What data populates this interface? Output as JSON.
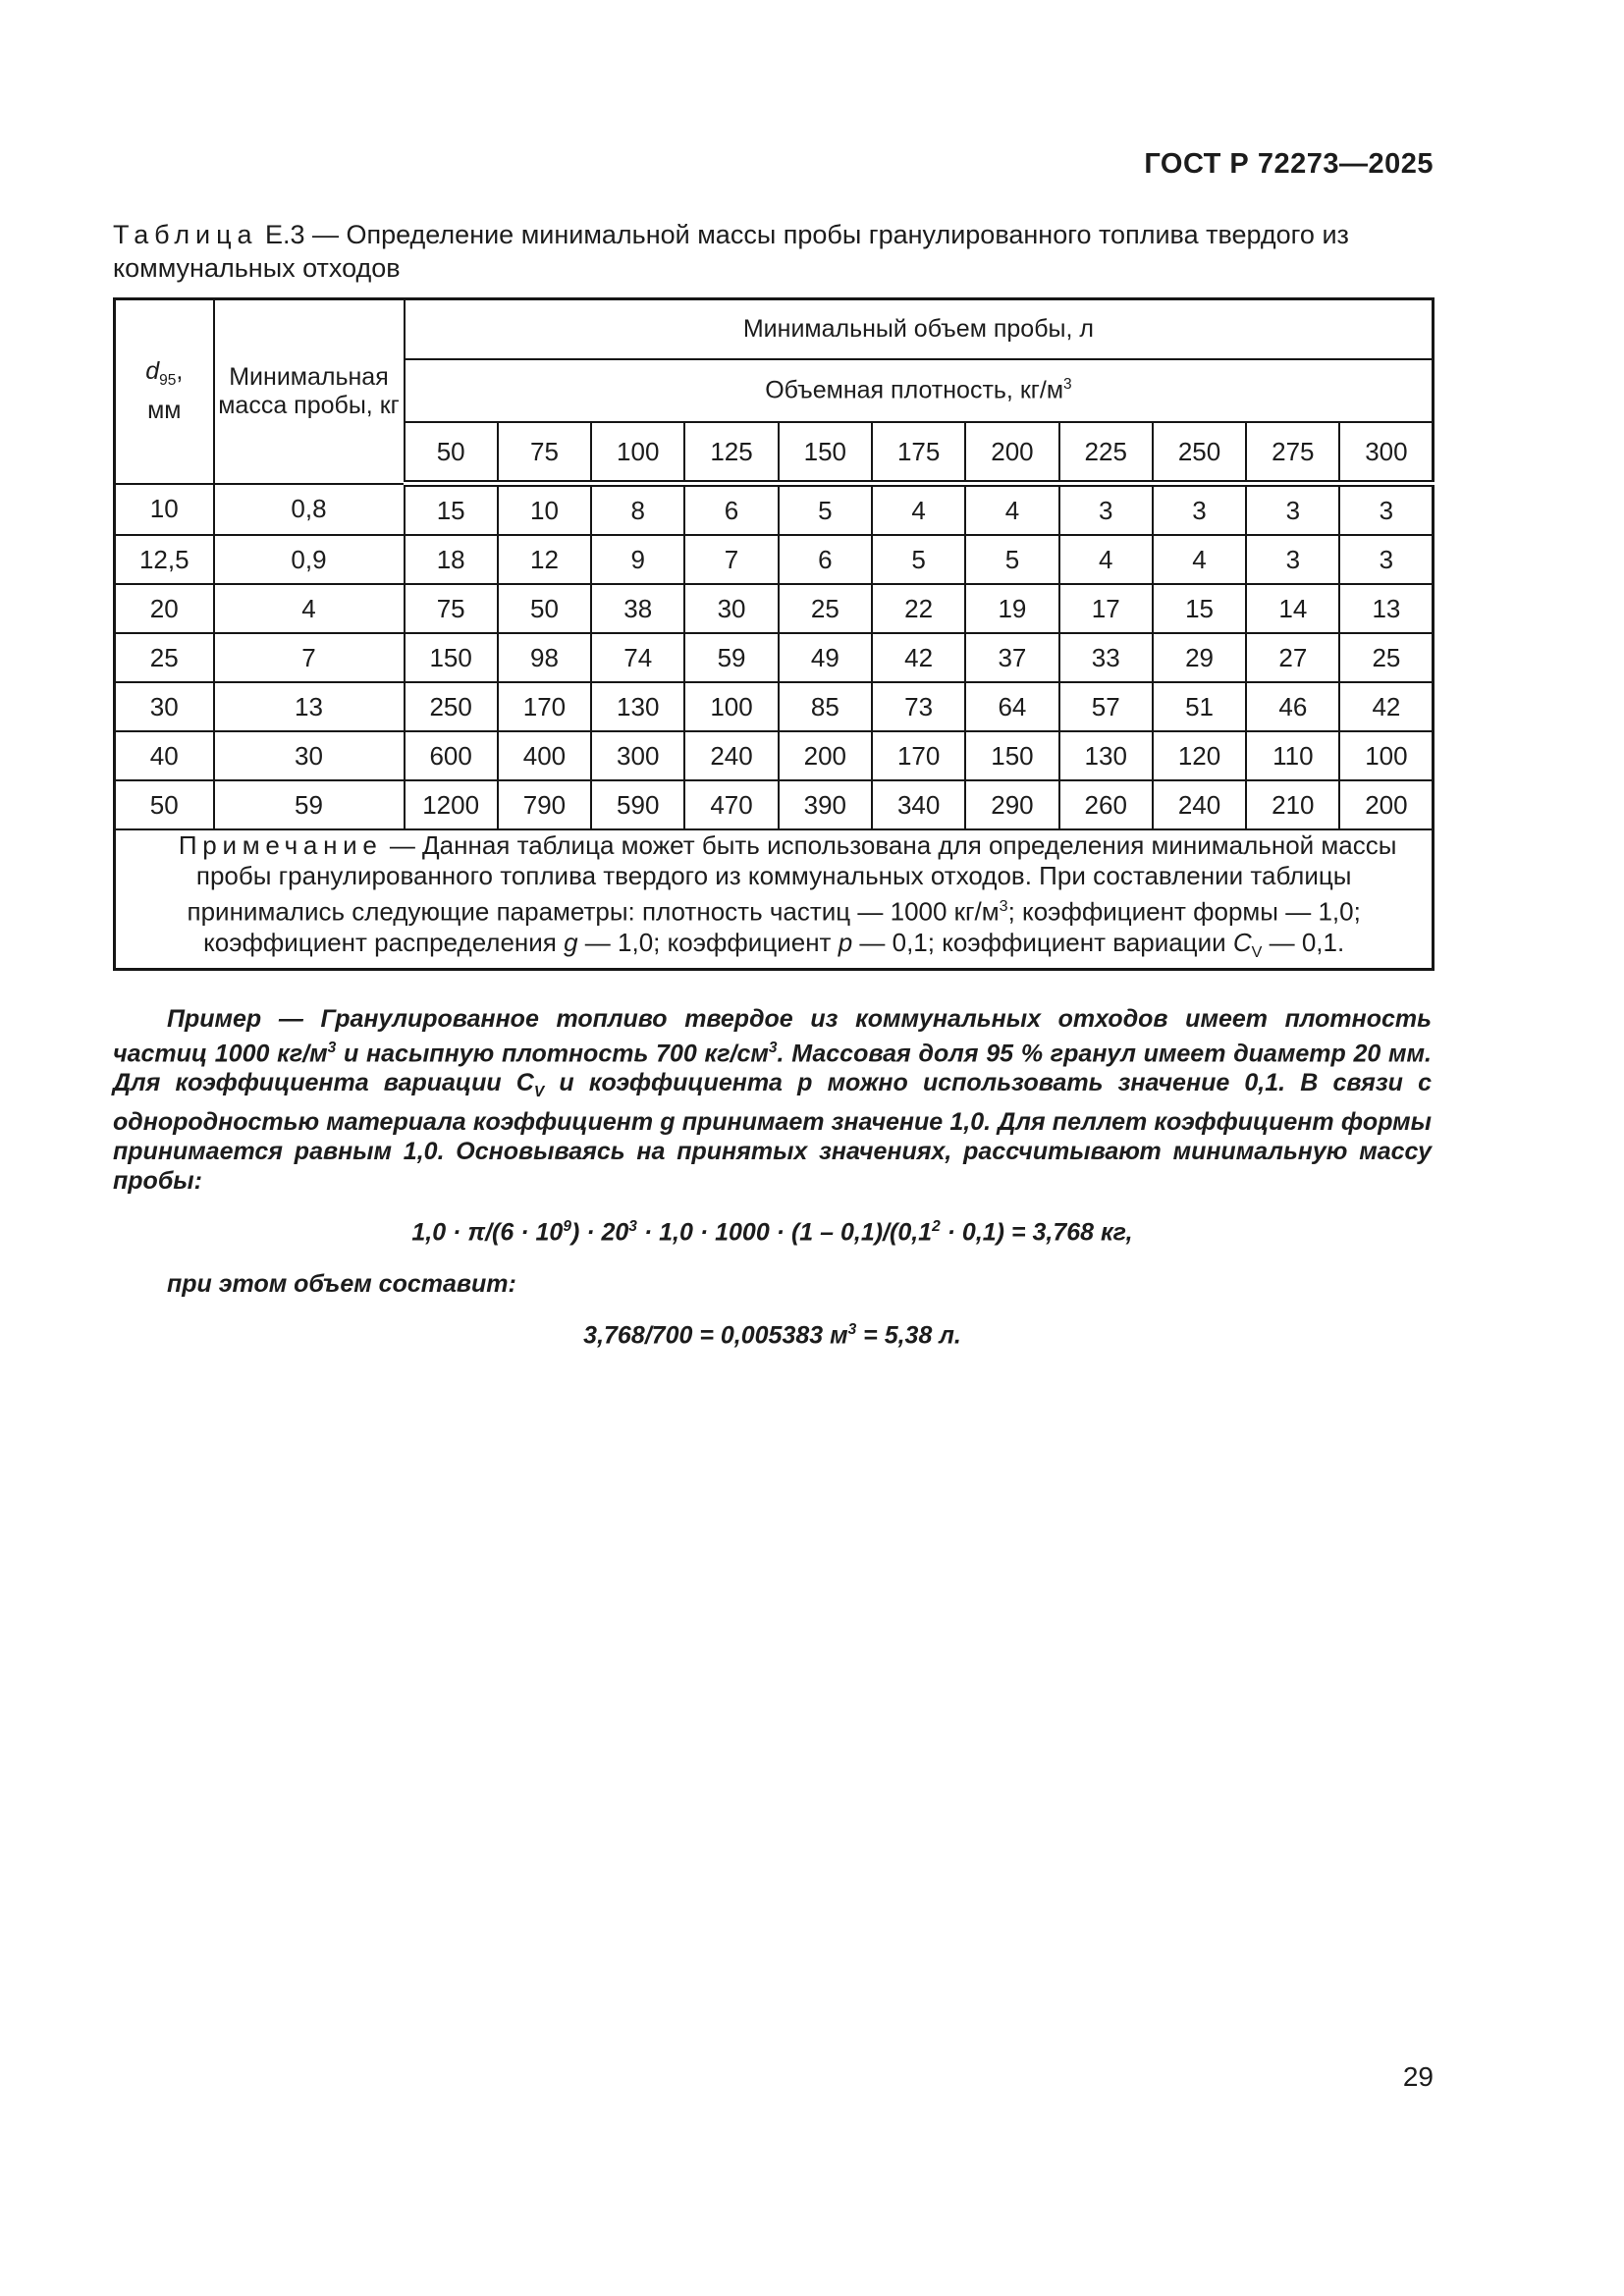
{
  "header": {
    "standard": "ГОСТ Р 72273—2025"
  },
  "caption": {
    "label": "Таблица",
    "rest": " Е.3 — Определение минимальной массы пробы гранулированного топлива твердого из коммунальных отходов"
  },
  "table": {
    "col1_base": "d",
    "col1_sub": "95",
    "col1_tail": ",",
    "col1_unit": "мм",
    "col2_header": "Минимальная масса пробы, кг",
    "volume_header": "Минимальный объем пробы, л",
    "density_header_base": "Объемная плотность, кг/м",
    "density_header_sup": "3",
    "density_values": [
      "50",
      "75",
      "100",
      "125",
      "150",
      "175",
      "200",
      "225",
      "250",
      "275",
      "300"
    ],
    "rows": [
      {
        "d": "10",
        "mass": "0,8",
        "values": [
          "15",
          "10",
          "8",
          "6",
          "5",
          "4",
          "4",
          "3",
          "3",
          "3",
          "3"
        ]
      },
      {
        "d": "12,5",
        "mass": "0,9",
        "values": [
          "18",
          "12",
          "9",
          "7",
          "6",
          "5",
          "5",
          "4",
          "4",
          "3",
          "3"
        ]
      },
      {
        "d": "20",
        "mass": "4",
        "values": [
          "75",
          "50",
          "38",
          "30",
          "25",
          "22",
          "19",
          "17",
          "15",
          "14",
          "13"
        ]
      },
      {
        "d": "25",
        "mass": "7",
        "values": [
          "150",
          "98",
          "74",
          "59",
          "49",
          "42",
          "37",
          "33",
          "29",
          "27",
          "25"
        ]
      },
      {
        "d": "30",
        "mass": "13",
        "values": [
          "250",
          "170",
          "130",
          "100",
          "85",
          "73",
          "64",
          "57",
          "51",
          "46",
          "42"
        ]
      },
      {
        "d": "40",
        "mass": "30",
        "values": [
          "600",
          "400",
          "300",
          "240",
          "200",
          "170",
          "150",
          "130",
          "120",
          "110",
          "100"
        ]
      },
      {
        "d": "50",
        "mass": "59",
        "values": [
          "1200",
          "790",
          "590",
          "470",
          "390",
          "340",
          "290",
          "260",
          "240",
          "210",
          "200"
        ]
      }
    ]
  },
  "note": {
    "label": "Примечание",
    "n1": " — Данная таблица может быть использована для определения минимальной массы пробы гранулированного топлива твердого из коммунальных отходов. При составлении таблицы принимались следующие параметры: плотность частиц — 1000 кг/м",
    "sup1": "3",
    "n2": "; коэффициент формы — 1,0; коэффициент распределения ",
    "g": "g",
    "n3": " — 1,0; коэффициент ",
    "p": "p",
    "n4": " — 0,1; коэффициент вариации ",
    "c": "C",
    "cv": "V",
    "n5": " — 0,1."
  },
  "example": {
    "part1": "Пример — Гранулированное топливо твердое из коммунальных отходов имеет плотность частиц 1000 кг/м",
    "sup1": "3",
    "part2": " и насыпную плотность 700 кг/см",
    "sup2": "3",
    "part3": ". Массовая доля 95 % гранул имеет диаметр 20 мм. Для коэффициента вариации C",
    "sub1": "V",
    "part4": " и коэффициента p можно использовать значение 0,1. В связи с однородностью материала коэффициент g принимает значение 1,0. Для пеллет коэффициент формы принимается равным 1,0. Основываясь на принятых значениях, рассчитывают минимальную массу пробы:"
  },
  "formula1": {
    "p1": "1,0 · π/(6 · 10",
    "s1": "9",
    "p2": ") · 20",
    "s2": "3",
    "p3": " · 1,0 · 1000 · (1 – 0,1)/(0,1",
    "s3": "2",
    "p4": " · 0,1) = 3,768 кг,"
  },
  "volume_note": "при этом объем составит:",
  "formula2": {
    "p1": "3,768/700 = 0,005383 м",
    "s1": "3",
    "p2": " = 5,38 л."
  },
  "page_number": "29"
}
